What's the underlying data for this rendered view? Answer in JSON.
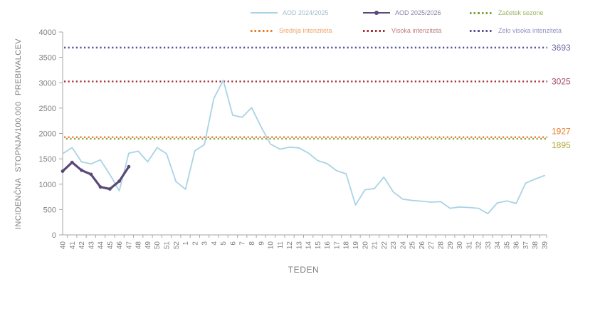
{
  "legend": [
    {
      "label": "AOD 2024/2025",
      "color": "#A9D3E5",
      "text_color": "#A3BDCC",
      "style": "solid"
    },
    {
      "label": "AOD 2025/2026",
      "color": "#5A4878",
      "text_color": "#8A7FA3",
      "style": "solid-marker"
    },
    {
      "label": "Začetek sezone",
      "color": "#7FA33C",
      "text_color": "#9CB366",
      "style": "dotted"
    },
    {
      "label": "Srednja intenziteta",
      "color": "#E87D2A",
      "text_color": "#F0A469",
      "style": "dotted"
    },
    {
      "label": "Visoka intenziteta",
      "color": "#A5333B",
      "text_color": "#C17E84",
      "style": "dotted"
    },
    {
      "label": "Zelo visoka intenziteta",
      "color": "#55559B",
      "text_color": "#8F8FBE",
      "style": "dotted"
    }
  ],
  "chart_data": {
    "type": "line",
    "title": "",
    "xlabel": "TEDEN",
    "ylabel": "INCIDENČNA STOPNJA/100.000 PREBIVALCEV",
    "ylim": [
      0,
      4000
    ],
    "ytick_step": 500,
    "grid": false,
    "legend_position": "top",
    "axis_color": "#A6A6A6",
    "tick_label_color": "#7F7F7F",
    "categories": [
      "40",
      "41",
      "42",
      "43",
      "44",
      "45",
      "46",
      "47",
      "48",
      "49",
      "50",
      "51",
      "52",
      "1",
      "2",
      "3",
      "4",
      "5",
      "6",
      "7",
      "8",
      "9",
      "10",
      "11",
      "12",
      "13",
      "14",
      "15",
      "16",
      "17",
      "18",
      "19",
      "20",
      "21",
      "22",
      "23",
      "24",
      "25",
      "26",
      "27",
      "28",
      "29",
      "30",
      "31",
      "32",
      "33",
      "34",
      "35",
      "36",
      "37",
      "38",
      "39"
    ],
    "series": [
      {
        "name": "AOD 2024/2025",
        "color": "#A9D3E5",
        "width": 1.8,
        "markers": false,
        "values": [
          1600,
          1720,
          1440,
          1400,
          1480,
          1190,
          870,
          1610,
          1650,
          1440,
          1720,
          1600,
          1050,
          900,
          1660,
          1780,
          2690,
          3050,
          2360,
          2320,
          2510,
          2130,
          1790,
          1690,
          1730,
          1715,
          1615,
          1465,
          1405,
          1265,
          1205,
          590,
          890,
          915,
          1140,
          845,
          705,
          680,
          665,
          645,
          655,
          525,
          550,
          540,
          525,
          420,
          630,
          670,
          620,
          1020,
          1100,
          1170
        ]
      },
      {
        "name": "AOD 2025/2026",
        "color": "#5A4878",
        "width": 3.2,
        "markers": true,
        "values": [
          1255,
          1430,
          1275,
          1195,
          945,
          905,
          1060,
          1345,
          null,
          null,
          null,
          null,
          null,
          null,
          null,
          null,
          null,
          null,
          null,
          null,
          null,
          null,
          null,
          null,
          null,
          null,
          null,
          null,
          null,
          null,
          null,
          null,
          null,
          null,
          null,
          null,
          null,
          null,
          null,
          null,
          null,
          null,
          null,
          null,
          null,
          null,
          null,
          null,
          null,
          null,
          null,
          null
        ]
      }
    ],
    "thresholds": [
      {
        "name": "Zelo visoka intenziteta",
        "value": 3693,
        "label": "3693",
        "color": "#55559B",
        "label_color": "#6B6BA8",
        "label_dy": 0
      },
      {
        "name": "Visoka intenziteta",
        "value": 3025,
        "label": "3025",
        "color": "#A5333B",
        "label_color": "#A4486A",
        "label_dy": 0
      },
      {
        "name": "Srednja intenziteta",
        "value": 1927,
        "label": "1927",
        "color": "#E87D2A",
        "label_color": "#ED7D2E",
        "label_dy": -8
      },
      {
        "name": "Začetek sezone",
        "value": 1895,
        "label": "1895",
        "color": "#8DA33B",
        "label_dy": 9,
        "label_color": "#B2A63B"
      }
    ]
  }
}
